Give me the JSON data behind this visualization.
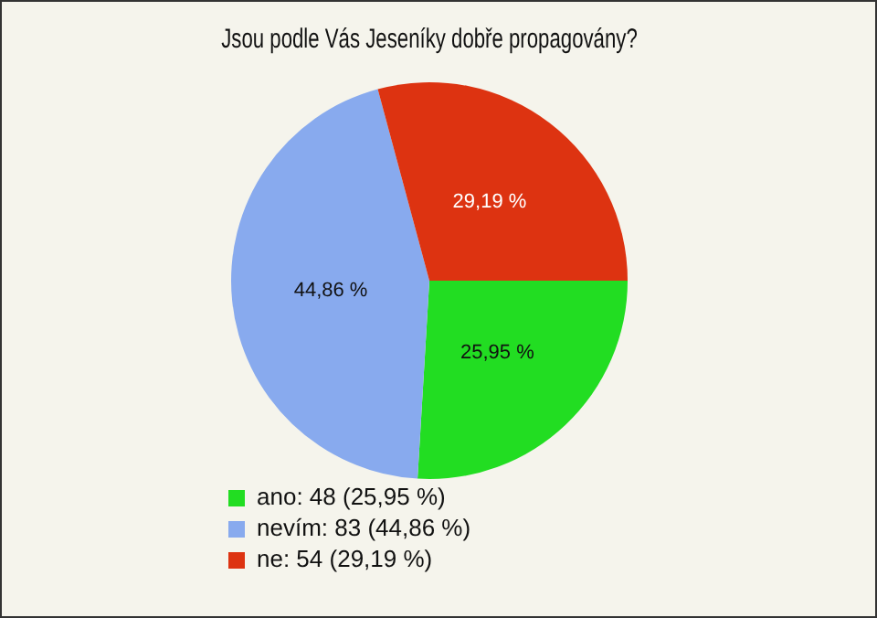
{
  "chart_data": {
    "type": "pie",
    "title": "Jsou podle Vás Jeseníky dobře propagovány?",
    "categories": [
      "ano: 48 (25,95 %)",
      "nevím: 83 (44,86 %)",
      "ne: 54 (29,19 %)"
    ],
    "values": [
      25.95,
      44.86,
      29.19
    ],
    "value_labels": [
      "25,95 %",
      "44,86 %",
      "29,19 %"
    ],
    "colors": [
      "#22dd22",
      "#88aaee",
      "#dd3311"
    ],
    "legend": "bottom left"
  }
}
